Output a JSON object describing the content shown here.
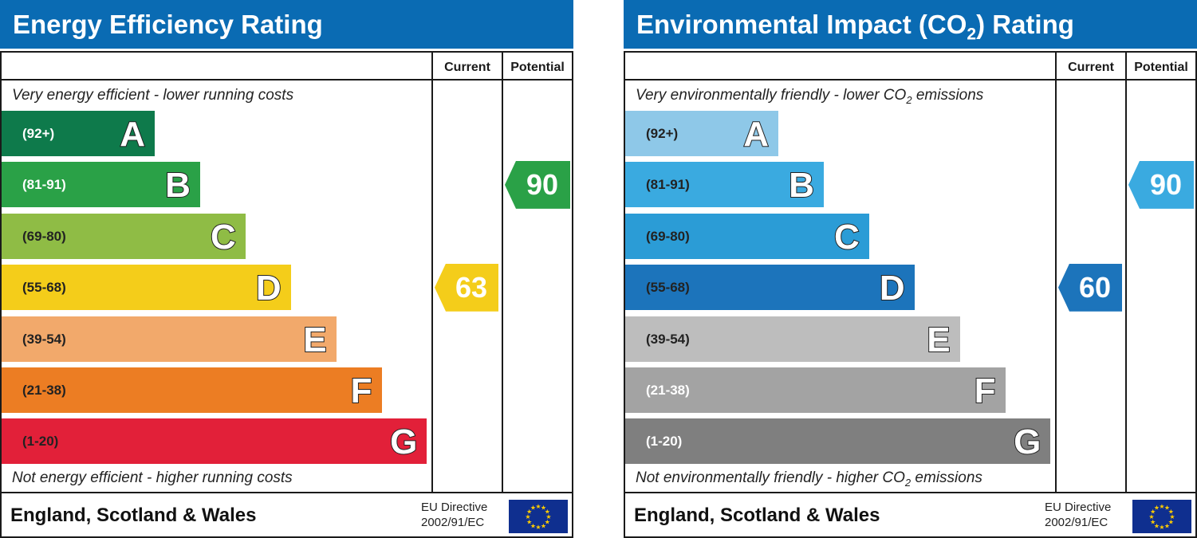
{
  "chart_data": [
    {
      "type": "bar",
      "title": "Energy Efficiency Rating",
      "columns": [
        "Current",
        "Potential"
      ],
      "caption_top": "Very energy efficient - lower running costs",
      "caption_bottom": "Not energy efficient - higher running costs",
      "bands": [
        {
          "letter": "A",
          "range": "(92+)",
          "color": "#0e7a4b",
          "text_color": "#ffffff"
        },
        {
          "letter": "B",
          "range": "(81-91)",
          "color": "#2aa147",
          "text_color": "#ffffff"
        },
        {
          "letter": "C",
          "range": "(69-80)",
          "color": "#8fbc45",
          "text_color": "#222222"
        },
        {
          "letter": "D",
          "range": "(55-68)",
          "color": "#f4cd1a",
          "text_color": "#222222"
        },
        {
          "letter": "E",
          "range": "(39-54)",
          "color": "#f2a96b",
          "text_color": "#222222"
        },
        {
          "letter": "F",
          "range": "(21-38)",
          "color": "#ec7d23",
          "text_color": "#222222"
        },
        {
          "letter": "G",
          "range": "(1-20)",
          "color": "#e22039",
          "text_color": "#222222"
        }
      ],
      "current": {
        "value": 63,
        "band": "D",
        "color": "#f4cd1a"
      },
      "potential": {
        "value": 90,
        "band": "B",
        "color": "#2aa147"
      },
      "footer_country": "England, Scotland & Wales",
      "footer_directive_line1": "EU Directive",
      "footer_directive_line2": "2002/91/EC"
    },
    {
      "type": "bar",
      "title_main": "Environmental Impact (CO",
      "title_sub": "2",
      "title_end": ") Rating",
      "columns": [
        "Current",
        "Potential"
      ],
      "caption_top_main": "Very environmentally friendly - lower CO",
      "caption_top_sub": "2",
      "caption_top_end": " emissions",
      "caption_bottom_main": "Not environmentally friendly - higher CO",
      "caption_bottom_sub": "2",
      "caption_bottom_end": " emissions",
      "bands": [
        {
          "letter": "A",
          "range": "(92+)",
          "color": "#8ec8e8",
          "text_color": "#222222"
        },
        {
          "letter": "B",
          "range": "(81-91)",
          "color": "#3aaae0",
          "text_color": "#222222"
        },
        {
          "letter": "C",
          "range": "(69-80)",
          "color": "#2b9cd6",
          "text_color": "#222222"
        },
        {
          "letter": "D",
          "range": "(55-68)",
          "color": "#1c74bb",
          "text_color": "#222222"
        },
        {
          "letter": "E",
          "range": "(39-54)",
          "color": "#bdbdbd",
          "text_color": "#222222"
        },
        {
          "letter": "F",
          "range": "(21-38)",
          "color": "#a3a3a3",
          "text_color": "#ffffff"
        },
        {
          "letter": "G",
          "range": "(1-20)",
          "color": "#7f7f7f",
          "text_color": "#ffffff"
        }
      ],
      "current": {
        "value": 60,
        "band": "D",
        "color": "#1c74bb"
      },
      "potential": {
        "value": 90,
        "band": "B",
        "color": "#3aaae0"
      },
      "footer_country": "England, Scotland & Wales",
      "footer_directive_line1": "EU Directive",
      "footer_directive_line2": "2002/91/EC"
    }
  ]
}
